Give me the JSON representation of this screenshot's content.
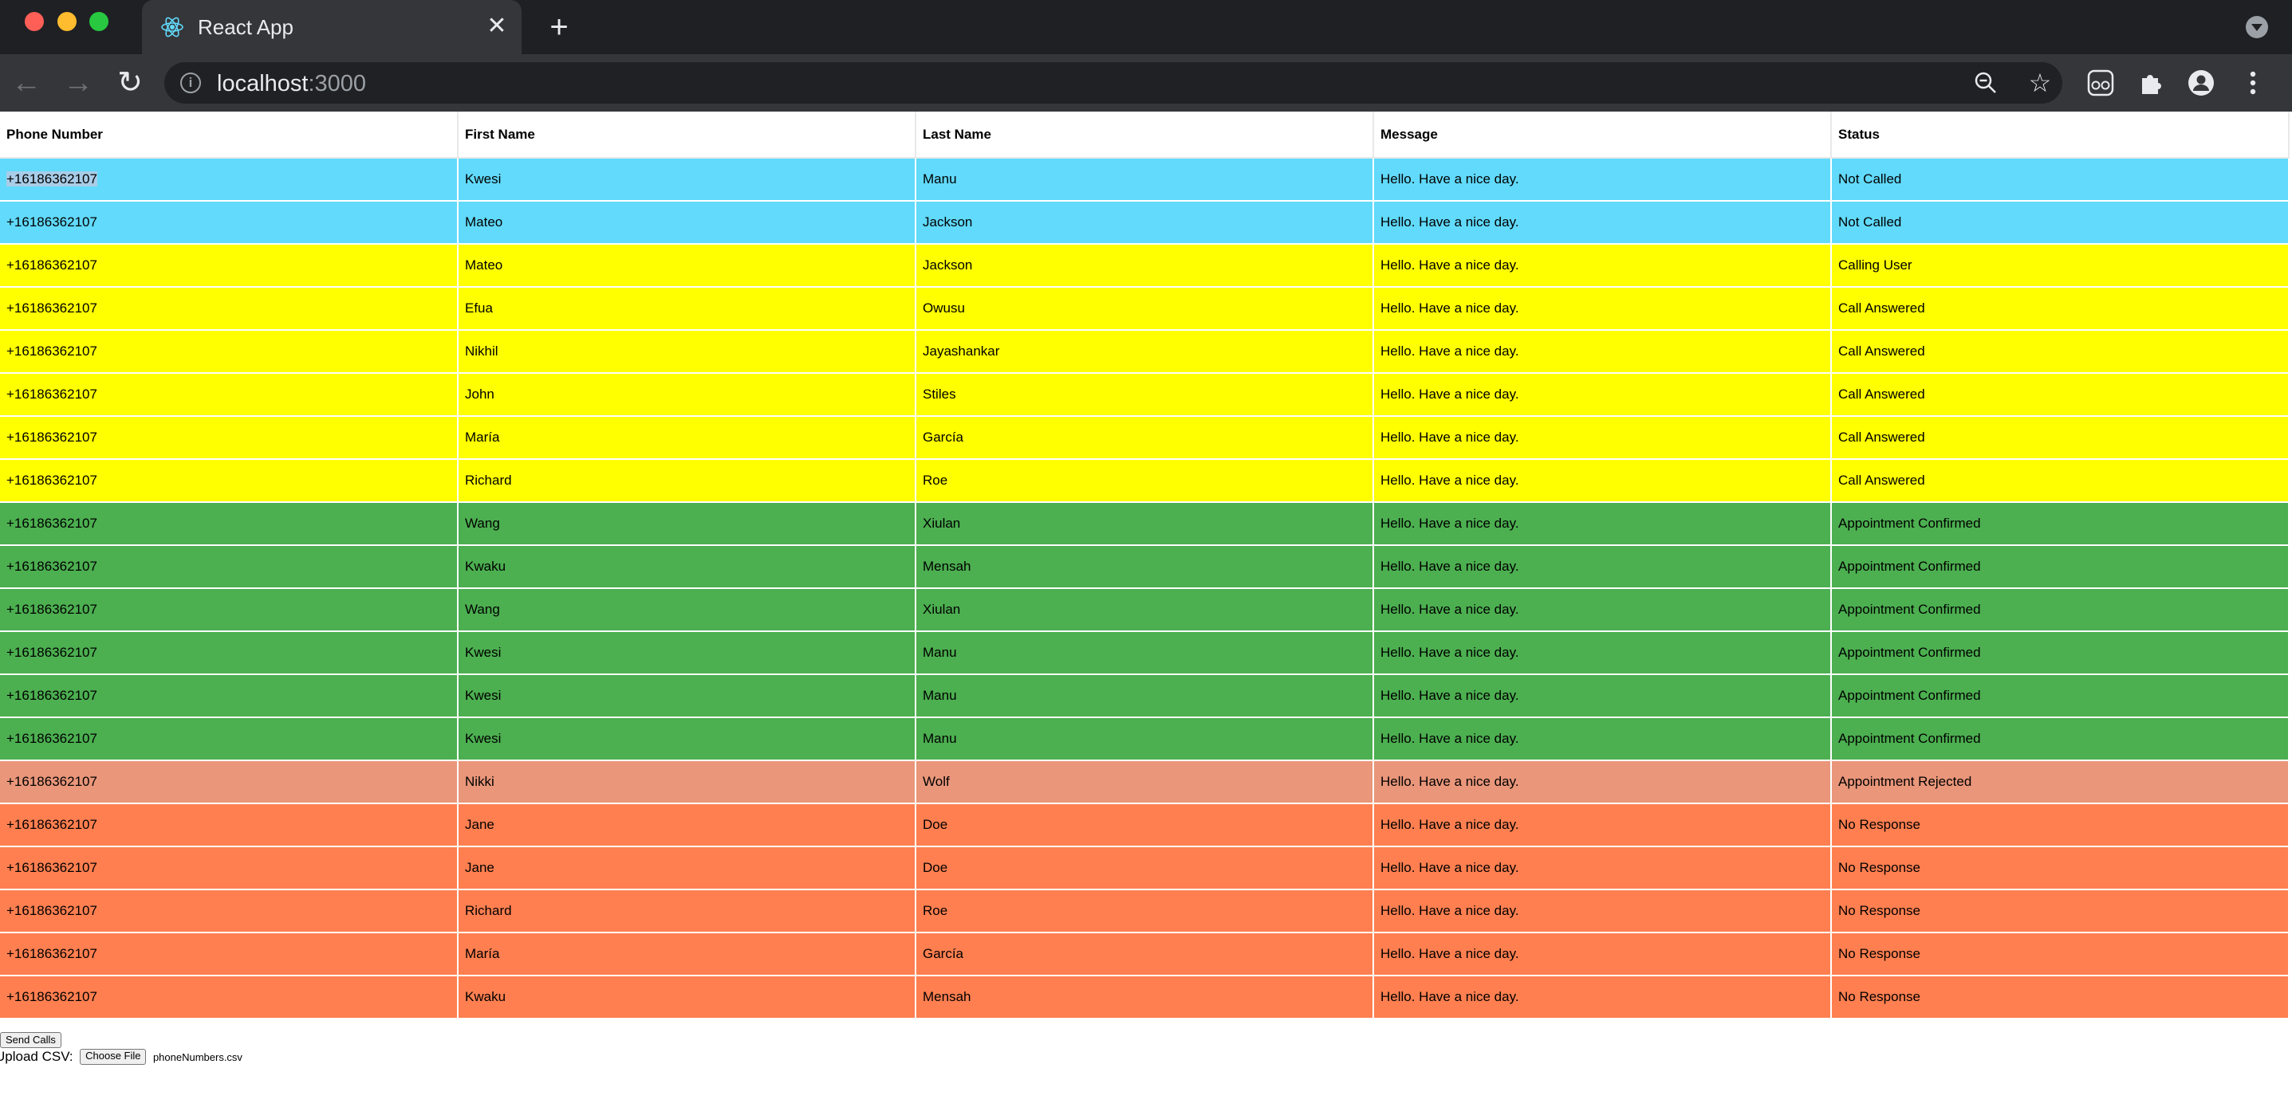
{
  "browser": {
    "tab_title": "React App",
    "url_host": "localhost",
    "url_port": ":3000",
    "close_glyph": "✕",
    "new_tab_glyph": "+",
    "back_glyph": "←",
    "forward_glyph": "→",
    "reload_glyph": "↻",
    "star_glyph": "☆"
  },
  "table": {
    "headers": [
      "Phone Number",
      "First Name",
      "Last Name",
      "Message",
      "Status"
    ],
    "rows": [
      {
        "phone": "+16186362107",
        "first": "Kwesi",
        "last": "Manu",
        "message": "Hello. Have a nice day.",
        "status": "Not Called",
        "color": "#61dafb"
      },
      {
        "phone": "+16186362107",
        "first": "Mateo",
        "last": "Jackson",
        "message": "Hello. Have a nice day.",
        "status": "Not Called",
        "color": "#61dafb"
      },
      {
        "phone": "+16186362107",
        "first": "Mateo",
        "last": "Jackson",
        "message": "Hello. Have a nice day.",
        "status": "Calling User",
        "color": "#ffff00"
      },
      {
        "phone": "+16186362107",
        "first": "Efua",
        "last": "Owusu",
        "message": "Hello. Have a nice day.",
        "status": "Call Answered",
        "color": "#ffff00"
      },
      {
        "phone": "+16186362107",
        "first": "Nikhil",
        "last": "Jayashankar",
        "message": "Hello. Have a nice day.",
        "status": "Call Answered",
        "color": "#ffff00"
      },
      {
        "phone": "+16186362107",
        "first": "John",
        "last": "Stiles",
        "message": "Hello. Have a nice day.",
        "status": "Call Answered",
        "color": "#ffff00"
      },
      {
        "phone": "+16186362107",
        "first": "María",
        "last": "García",
        "message": "Hello. Have a nice day.",
        "status": "Call Answered",
        "color": "#ffff00"
      },
      {
        "phone": "+16186362107",
        "first": "Richard",
        "last": "Roe",
        "message": "Hello. Have a nice day.",
        "status": "Call Answered",
        "color": "#ffff00"
      },
      {
        "phone": "+16186362107",
        "first": "Wang",
        "last": "Xiulan",
        "message": "Hello. Have a nice day.",
        "status": "Appointment Confirmed",
        "color": "#4caf50"
      },
      {
        "phone": "+16186362107",
        "first": "Kwaku",
        "last": "Mensah",
        "message": "Hello. Have a nice day.",
        "status": "Appointment Confirmed",
        "color": "#4caf50"
      },
      {
        "phone": "+16186362107",
        "first": "Wang",
        "last": "Xiulan",
        "message": "Hello. Have a nice day.",
        "status": "Appointment Confirmed",
        "color": "#4caf50"
      },
      {
        "phone": "+16186362107",
        "first": "Kwesi",
        "last": "Manu",
        "message": "Hello. Have a nice day.",
        "status": "Appointment Confirmed",
        "color": "#4caf50"
      },
      {
        "phone": "+16186362107",
        "first": "Kwesi",
        "last": "Manu",
        "message": "Hello. Have a nice day.",
        "status": "Appointment Confirmed",
        "color": "#4caf50"
      },
      {
        "phone": "+16186362107",
        "first": "Kwesi",
        "last": "Manu",
        "message": "Hello. Have a nice day.",
        "status": "Appointment Confirmed",
        "color": "#4caf50"
      },
      {
        "phone": "+16186362107",
        "first": "Nikki",
        "last": "Wolf",
        "message": "Hello. Have a nice day.",
        "status": "Appointment Rejected",
        "color": "#e9967a"
      },
      {
        "phone": "+16186362107",
        "first": "Jane",
        "last": "Doe",
        "message": "Hello. Have a nice day.",
        "status": "No Response",
        "color": "#ff7f50"
      },
      {
        "phone": "+16186362107",
        "first": "Jane",
        "last": "Doe",
        "message": "Hello. Have a nice day.",
        "status": "No Response",
        "color": "#ff7f50"
      },
      {
        "phone": "+16186362107",
        "first": "Richard",
        "last": "Roe",
        "message": "Hello. Have a nice day.",
        "status": "No Response",
        "color": "#ff7f50"
      },
      {
        "phone": "+16186362107",
        "first": "María",
        "last": "García",
        "message": "Hello. Have a nice day.",
        "status": "No Response",
        "color": "#ff7f50"
      },
      {
        "phone": "+16186362107",
        "first": "Kwaku",
        "last": "Mensah",
        "message": "Hello. Have a nice day.",
        "status": "No Response",
        "color": "#ff7f50"
      }
    ]
  },
  "controls": {
    "send_label": "Send Calls",
    "upload_label": "Upload CSV:",
    "choose_label": "Choose File",
    "file_name": "phoneNumbers.csv"
  }
}
